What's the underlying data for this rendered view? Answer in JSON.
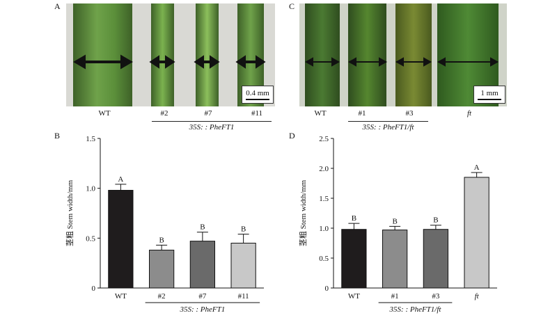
{
  "panels": {
    "A": {
      "letter": "A",
      "labels": [
        "WT",
        "#2",
        "#7",
        "#11"
      ],
      "genotype": "35S: : PheFT1",
      "scale_text": "0.4 mm"
    },
    "C": {
      "letter": "C",
      "labels": [
        "WT",
        "#1",
        "#3",
        "ft"
      ],
      "genotype": "35S: : PheFT1/ft",
      "scale_text": "1 mm"
    }
  },
  "colors": {
    "black_bar": "#1f1c1d",
    "gray_bar": "#8c8c8c",
    "dark_gray_bar": "#6a6a6a",
    "light_gray_bar": "#c8c8c8",
    "stem_green": "#5b8f3a",
    "stem_dark": "#3e6128",
    "photo_bg_A": "#d9d9d4",
    "photo_bg_C": "#cfd3c8"
  },
  "chart_data": [
    {
      "panel": "B",
      "type": "bar",
      "categories": [
        "WT",
        "#2",
        "#7",
        "#11"
      ],
      "values": [
        0.98,
        0.38,
        0.47,
        0.45
      ],
      "errors": [
        0.06,
        0.05,
        0.09,
        0.09
      ],
      "significance": [
        "A",
        "B",
        "B",
        "B"
      ],
      "bar_colors": [
        "#1f1c1d",
        "#8c8c8c",
        "#6a6a6a",
        "#c8c8c8"
      ],
      "ylabel": "茎粗 Stem width/mm",
      "ylim": [
        0,
        1.5
      ],
      "yticks": [
        "0",
        "0.5",
        "1.0",
        "1.5"
      ],
      "group_label": "35S: : PheFT1",
      "grid": false
    },
    {
      "panel": "D",
      "type": "bar",
      "categories": [
        "WT",
        "#1",
        "#3",
        "ft"
      ],
      "values": [
        0.98,
        0.97,
        0.98,
        1.85
      ],
      "errors": [
        0.1,
        0.06,
        0.07,
        0.08
      ],
      "significance": [
        "B",
        "B",
        "B",
        "A"
      ],
      "bar_colors": [
        "#1f1c1d",
        "#8c8c8c",
        "#6a6a6a",
        "#c8c8c8"
      ],
      "ylabel": "茎粗 Stem width/mm",
      "ylim": [
        0,
        2.5
      ],
      "yticks": [
        "0",
        "0.5",
        "1.0",
        "1.5",
        "2.0",
        "2.5"
      ],
      "group_label": "35S: : PheFT1/ft",
      "grid": false
    }
  ]
}
